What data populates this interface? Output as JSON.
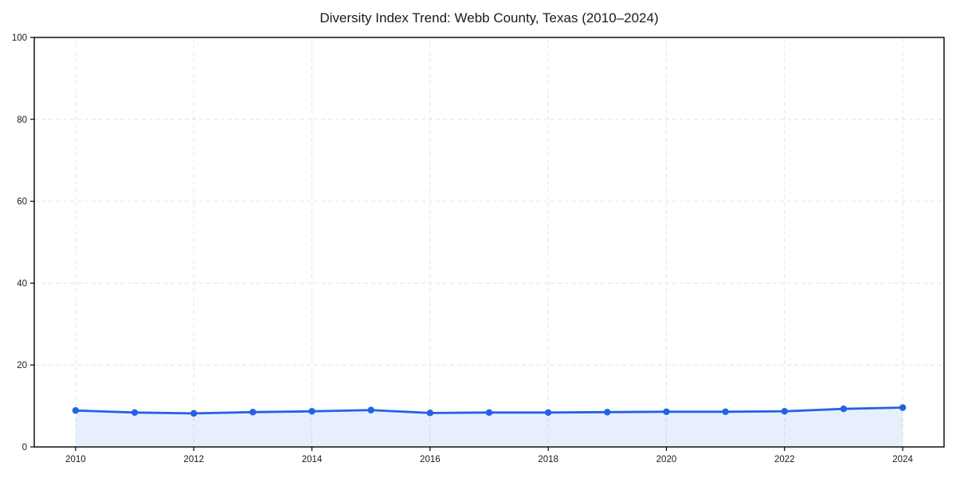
{
  "chart_data": {
    "type": "line",
    "title": "Diversity Index Trend: Webb County, Texas (2010–2024)",
    "xlabel": "",
    "ylabel": "",
    "x": [
      2010,
      2011,
      2012,
      2013,
      2014,
      2015,
      2016,
      2017,
      2018,
      2019,
      2020,
      2021,
      2022,
      2023,
      2024
    ],
    "series": [
      {
        "name": "Diversity Index",
        "values": [
          8.9,
          8.4,
          8.2,
          8.5,
          8.7,
          9.0,
          8.3,
          8.4,
          8.4,
          8.5,
          8.6,
          8.6,
          8.7,
          9.3,
          9.6
        ]
      }
    ],
    "xlim": [
      2009.3,
      2024.7
    ],
    "ylim": [
      0,
      100
    ],
    "x_ticks": [
      2010,
      2012,
      2014,
      2016,
      2018,
      2020,
      2022,
      2024
    ],
    "x_tick_labels": [
      "2010",
      "2012",
      "2014",
      "2016",
      "2018",
      "2020",
      "2022",
      "2024"
    ],
    "y_ticks": [
      0,
      20,
      40,
      60,
      80,
      100
    ],
    "y_tick_labels": [
      "0",
      "20",
      "40",
      "60",
      "80",
      "100"
    ],
    "grid": true,
    "grid_style": "dashed",
    "legend_position": "none",
    "marker": "circle",
    "area_fill_under_line": true,
    "colors": {
      "line": "#2263e5",
      "marker": "#2263e5",
      "area_fill": "rgba(34, 99, 229, 0.10)",
      "grid": "#e4e4e4",
      "spine": "#000000",
      "title_text": "#1a1a1a",
      "tick_text": "#1a1a1a"
    }
  }
}
